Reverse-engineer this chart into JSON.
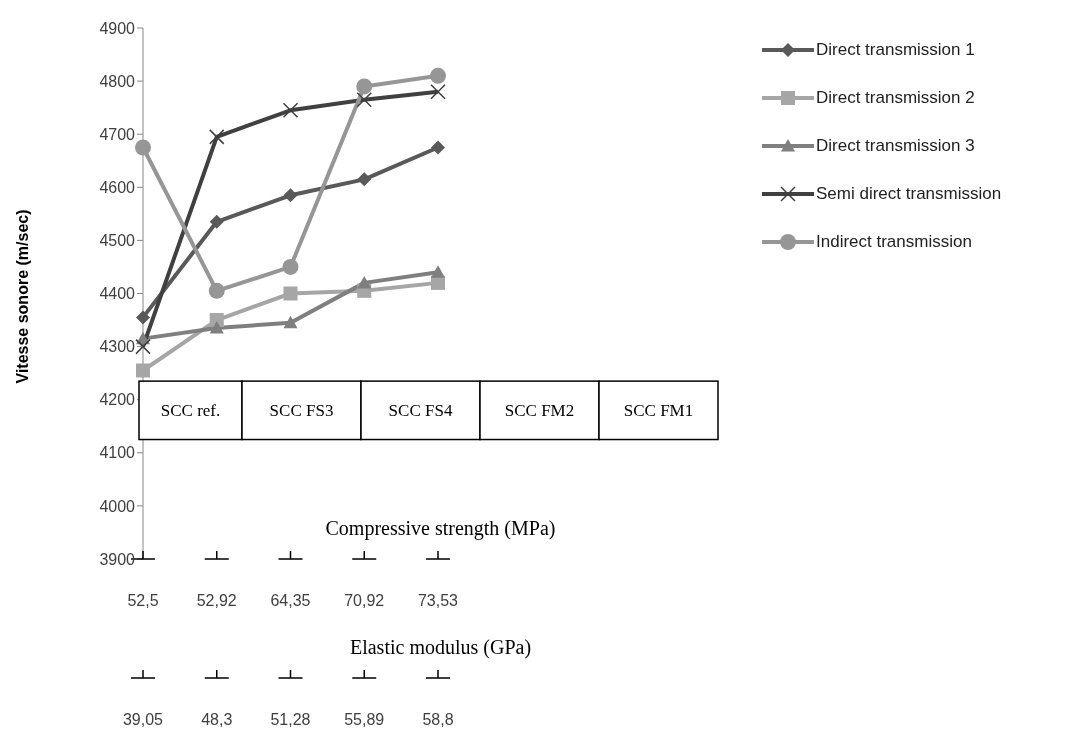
{
  "chart_data": {
    "type": "line",
    "ylabel": "Vitesse sonore (m/sec)",
    "xlabel": "Compressive strength (MPa)",
    "x2label": "Elastic modulus (GPa)",
    "categories": [
      "52,5",
      "52,92",
      "64,35",
      "70,92",
      "73,53"
    ],
    "ylim": [
      3900,
      4900
    ],
    "yticks": [
      3900,
      4000,
      4100,
      4200,
      4300,
      4400,
      4500,
      4600,
      4700,
      4800,
      4900
    ],
    "legend": "right",
    "series": [
      {
        "name": "Direct transmission 1",
        "color": "#595959",
        "marker": "diamond",
        "values": [
          4355,
          4535,
          4585,
          4615,
          4675
        ]
      },
      {
        "name": "Direct transmission 2",
        "color": "#a6a6a6",
        "marker": "square",
        "values": [
          4255,
          4350,
          4400,
          4405,
          4420
        ]
      },
      {
        "name": "Direct transmission 3",
        "color": "#7f7f7f",
        "marker": "triangle",
        "values": [
          4315,
          4335,
          4345,
          4420,
          4440
        ]
      },
      {
        "name": "Semi direct transmission",
        "color": "#404040",
        "marker": "cross",
        "values": [
          4300,
          4695,
          4745,
          4765,
          4780
        ]
      },
      {
        "name": "Indirect transmission",
        "color": "#969696",
        "marker": "circle",
        "values": [
          4675,
          4405,
          4450,
          4790,
          4810
        ]
      }
    ],
    "annotations": [
      "SCC ref.",
      "SCC FS3",
      "SCC FS4",
      "SCC FM2",
      "SCC FM1",
      "39,05",
      "48,3",
      "51,28",
      "55,89",
      "58,8"
    ]
  }
}
